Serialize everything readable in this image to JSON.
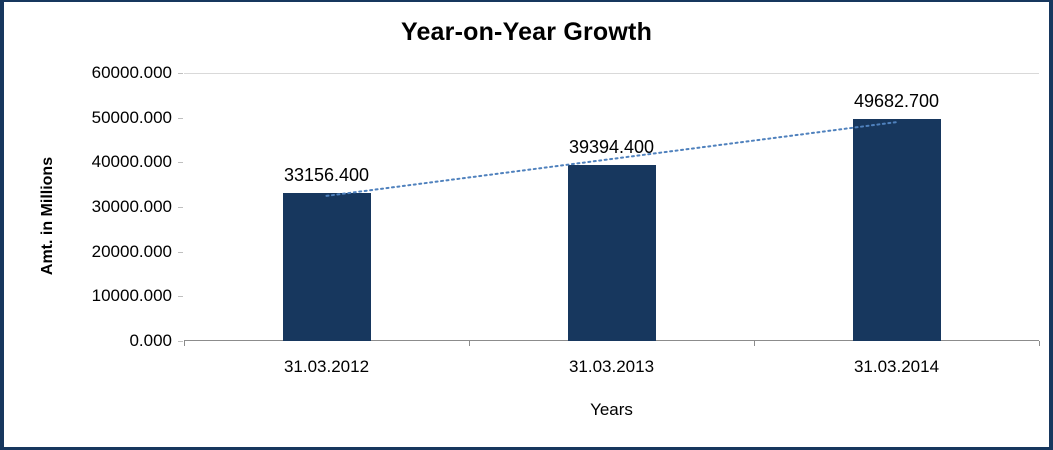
{
  "chart_data": {
    "type": "bar",
    "title": "Year-on-Year Growth",
    "xlabel": "Years",
    "ylabel": "Amt. in Millions",
    "categories": [
      "31.03.2012",
      "31.03.2013",
      "31.03.2014"
    ],
    "values": [
      33156.4,
      39394.4,
      49682.7
    ],
    "value_labels": [
      "33156.400",
      "39394.400",
      "49682.700"
    ],
    "ylim": [
      0,
      60000
    ],
    "ytick_labels": [
      "60000.000",
      "50000.000",
      "40000.000",
      "30000.000",
      "20000.000",
      "10000.000",
      "0.000"
    ],
    "grid": "top-gridline-only",
    "legend": "none",
    "bar_color": "#17375E",
    "frame_border_color": "#17375E",
    "trendline": {
      "type": "linear",
      "style": "dotted",
      "color": "#4f81bd",
      "fit_values": [
        32481.35,
        40744.5,
        49007.65
      ]
    }
  }
}
